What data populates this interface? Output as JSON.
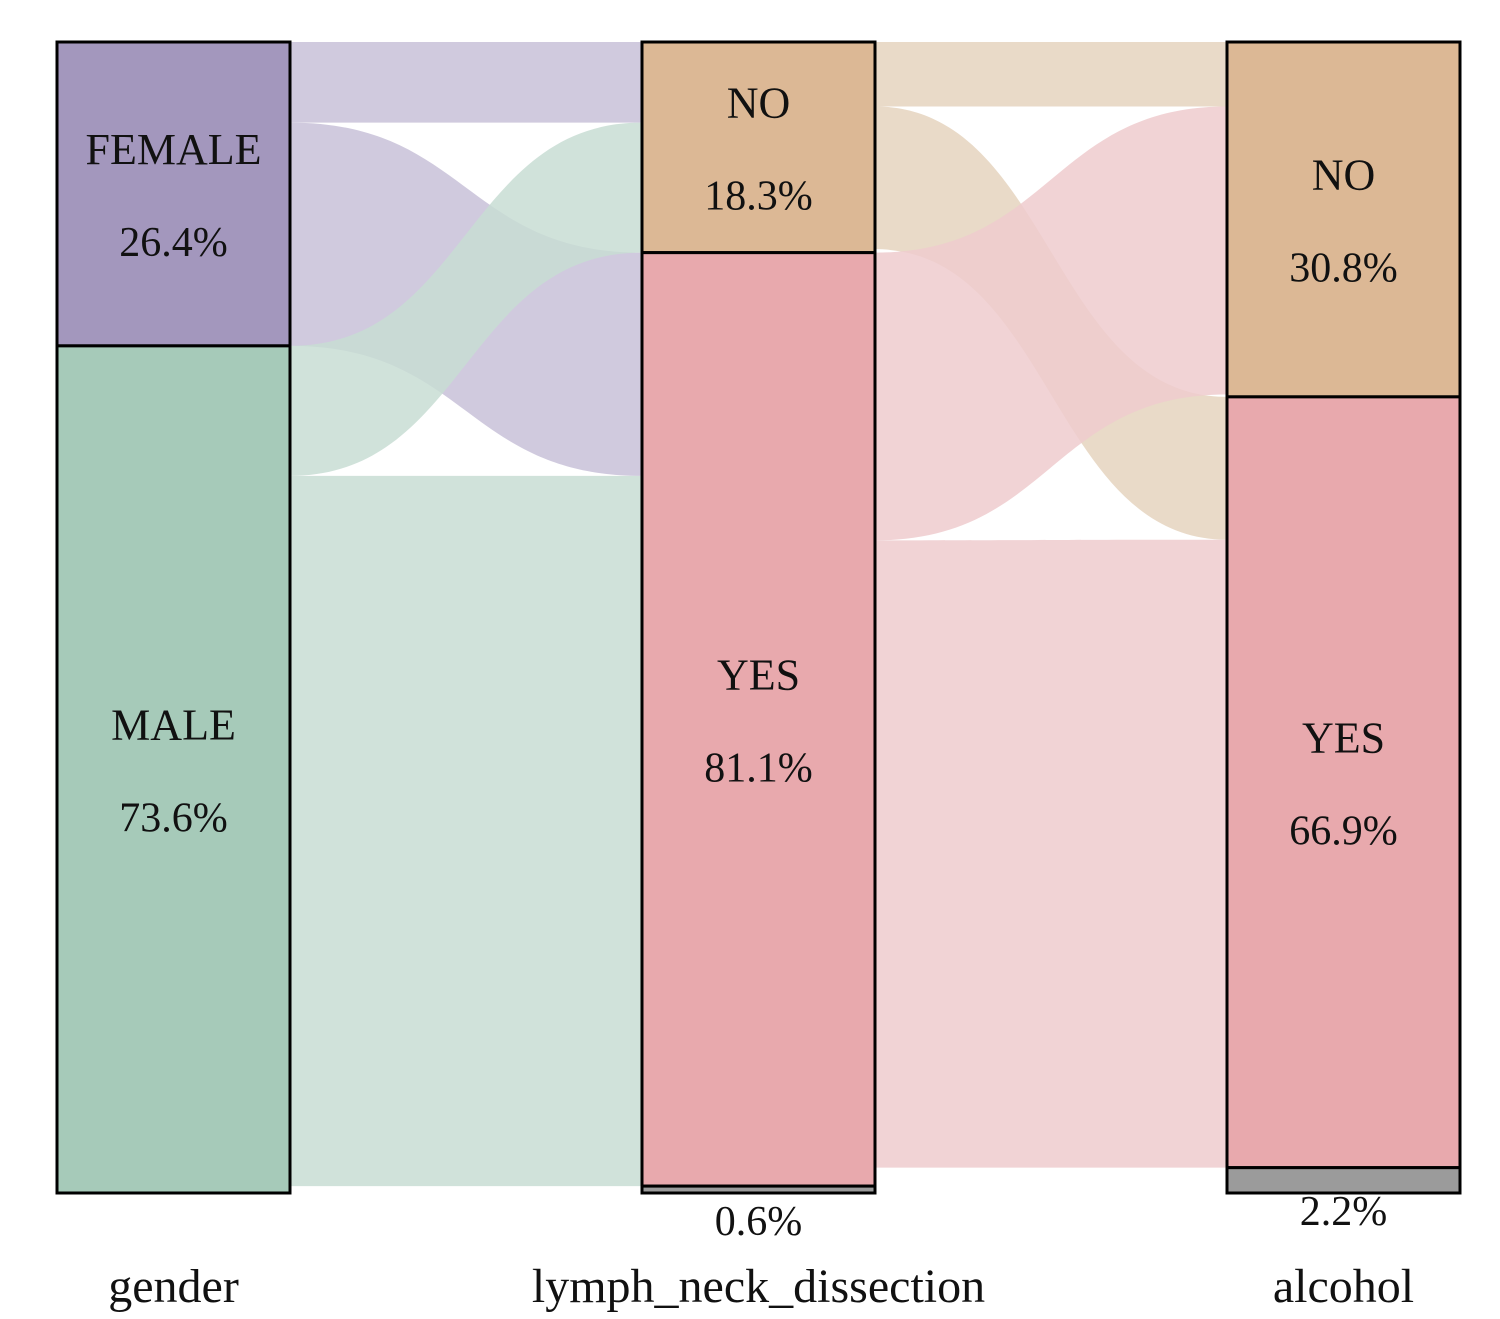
{
  "chart_data": {
    "type": "alluvial",
    "title": "",
    "axes": [
      {
        "name": "gender",
        "categories": [
          {
            "label": "FEMALE",
            "pct_label": "26.4%",
            "value": 26.4,
            "color": "#a397bd"
          },
          {
            "label": "MALE",
            "pct_label": "73.6%",
            "value": 73.6,
            "color": "#a6cab9"
          }
        ]
      },
      {
        "name": "lymph_neck_dissection",
        "categories": [
          {
            "label": "NO",
            "pct_label": "18.3%",
            "value": 18.3,
            "color": "#dcb895"
          },
          {
            "label": "YES",
            "pct_label": "81.1%",
            "value": 81.1,
            "color": "#e8a9ad"
          },
          {
            "label": "",
            "pct_label": "0.6%",
            "value": 0.6,
            "color": "#9b9b9b"
          }
        ]
      },
      {
        "name": "alcohol",
        "categories": [
          {
            "label": "NO",
            "pct_label": "30.8%",
            "value": 30.8,
            "color": "#dcb895"
          },
          {
            "label": "YES",
            "pct_label": "66.9%",
            "value": 66.9,
            "color": "#e8a9ad"
          },
          {
            "label": "",
            "pct_label": "2.2%",
            "value": 2.2,
            "color": "#9b9b9b"
          }
        ]
      }
    ],
    "flows": [
      {
        "from_axis": 0,
        "from": "FEMALE",
        "to_axis": 1,
        "to": "NO",
        "value": 7.0,
        "color": "#c8c1d8"
      },
      {
        "from_axis": 0,
        "from": "FEMALE",
        "to_axis": 1,
        "to": "YES",
        "value": 19.4,
        "color": "#c8c1d8"
      },
      {
        "from_axis": 0,
        "from": "MALE",
        "to_axis": 1,
        "to": "NO",
        "value": 11.3,
        "color": "#c8ddd3"
      },
      {
        "from_axis": 0,
        "from": "MALE",
        "to_axis": 1,
        "to": "YES",
        "value": 61.7,
        "color": "#c8ddd3"
      },
      {
        "from_axis": 1,
        "from": "NO",
        "to_axis": 2,
        "to": "NO",
        "value": 5.6,
        "color": "#e5d3be"
      },
      {
        "from_axis": 1,
        "from": "NO",
        "to_axis": 2,
        "to": "YES",
        "value": 12.4,
        "color": "#e5d3be"
      },
      {
        "from_axis": 1,
        "from": "YES",
        "to_axis": 2,
        "to": "NO",
        "value": 25.0,
        "color": "#efcbce"
      },
      {
        "from_axis": 1,
        "from": "YES",
        "to_axis": 2,
        "to": "YES",
        "value": 54.5,
        "color": "#efcbce"
      }
    ]
  }
}
